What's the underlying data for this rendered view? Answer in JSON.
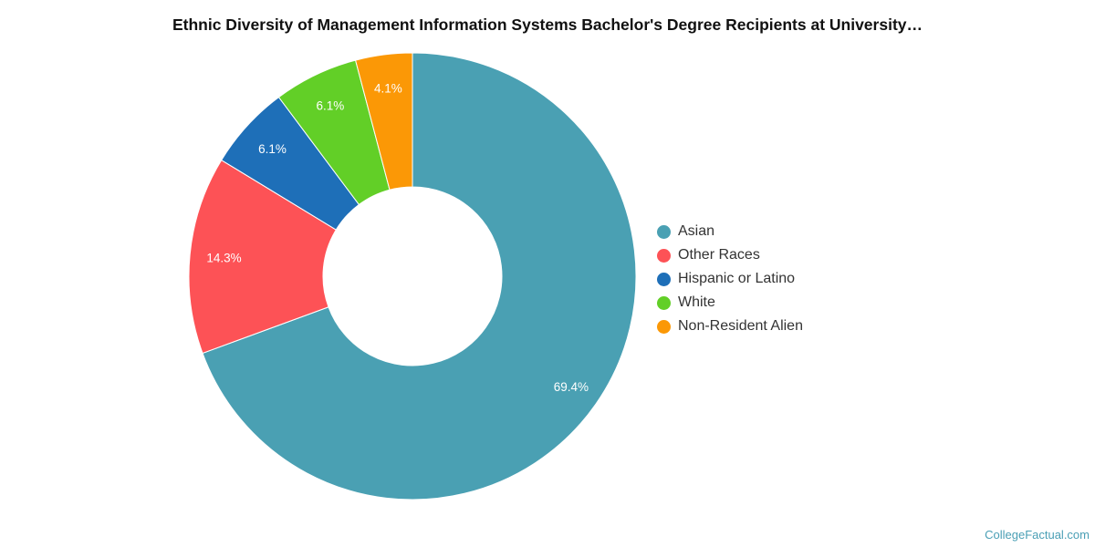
{
  "title": "Ethnic Diversity of Management Information Systems Bachelor's Degree Recipients at University…",
  "credit": "CollegeFactual.com",
  "chart_data": {
    "type": "pie",
    "donut": true,
    "legend_position": "right",
    "slices": [
      {
        "name": "Asian",
        "value": 69.4,
        "label": "69.4%",
        "color": "#4aa0b3"
      },
      {
        "name": "Other Races",
        "value": 14.3,
        "label": "14.3%",
        "color": "#fd5256"
      },
      {
        "name": "Hispanic or Latino",
        "value": 6.1,
        "label": "6.1%",
        "color": "#1e6fb8"
      },
      {
        "name": "White",
        "value": 6.1,
        "label": "6.1%",
        "color": "#62cf27"
      },
      {
        "name": "Non-Resident Alien",
        "value": 4.1,
        "label": "4.1%",
        "color": "#fb9806"
      }
    ]
  }
}
